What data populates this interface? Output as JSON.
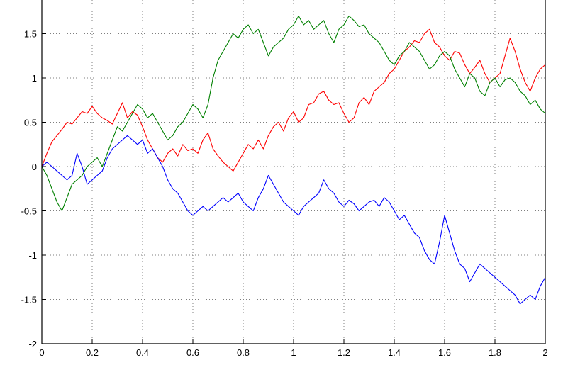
{
  "chart_data": {
    "type": "line",
    "title": "",
    "xlabel": "",
    "ylabel": "",
    "xlim": [
      0,
      2
    ],
    "ylim": [
      -2,
      2
    ],
    "x_ticks": [
      0,
      0.2,
      0.4,
      0.6,
      0.8,
      1,
      1.2,
      1.4,
      1.6,
      1.8,
      2
    ],
    "x_tick_labels": [
      "0",
      "0.2",
      "0.4",
      "0.6",
      "0.8",
      "1",
      "1.2",
      "1.4",
      "1.6",
      "1.8",
      "2"
    ],
    "y_ticks": [
      -2,
      -1.5,
      -1,
      -0.5,
      0,
      0.5,
      1,
      1.5
    ],
    "y_tick_labels": [
      "-2",
      "-1.5",
      "-1",
      "-0.5",
      "0",
      "0.5",
      "1",
      "1.5"
    ],
    "grid": true,
    "legend": "none",
    "series": [
      {
        "color": "#ff0000",
        "x": [
          0,
          0.02,
          0.04,
          0.06,
          0.08,
          0.1,
          0.12,
          0.14,
          0.16,
          0.18,
          0.2,
          0.22,
          0.24,
          0.26,
          0.28,
          0.3,
          0.32,
          0.34,
          0.36,
          0.38,
          0.4,
          0.42,
          0.44,
          0.46,
          0.48,
          0.5,
          0.52,
          0.54,
          0.56,
          0.58,
          0.6,
          0.62,
          0.64,
          0.66,
          0.68,
          0.7,
          0.72,
          0.74,
          0.76,
          0.78,
          0.8,
          0.82,
          0.84,
          0.86,
          0.88,
          0.9,
          0.92,
          0.94,
          0.96,
          0.98,
          1.0,
          1.02,
          1.04,
          1.06,
          1.08,
          1.1,
          1.12,
          1.14,
          1.16,
          1.18,
          1.2,
          1.22,
          1.24,
          1.26,
          1.28,
          1.3,
          1.32,
          1.34,
          1.36,
          1.38,
          1.4,
          1.42,
          1.44,
          1.46,
          1.48,
          1.5,
          1.52,
          1.54,
          1.56,
          1.58,
          1.6,
          1.62,
          1.64,
          1.66,
          1.68,
          1.7,
          1.72,
          1.74,
          1.76,
          1.78,
          1.8,
          1.82,
          1.84,
          1.86,
          1.88,
          1.9,
          1.92,
          1.94,
          1.96,
          1.98,
          2.0
        ],
        "y": [
          0,
          0.15,
          0.28,
          0.35,
          0.42,
          0.5,
          0.48,
          0.55,
          0.62,
          0.6,
          0.68,
          0.6,
          0.55,
          0.52,
          0.48,
          0.6,
          0.72,
          0.55,
          0.62,
          0.58,
          0.45,
          0.3,
          0.2,
          0.1,
          0.05,
          0.15,
          0.2,
          0.12,
          0.25,
          0.18,
          0.2,
          0.15,
          0.3,
          0.38,
          0.2,
          0.12,
          0.05,
          0.0,
          -0.05,
          0.05,
          0.15,
          0.25,
          0.2,
          0.3,
          0.2,
          0.35,
          0.45,
          0.5,
          0.4,
          0.55,
          0.62,
          0.5,
          0.55,
          0.7,
          0.72,
          0.82,
          0.85,
          0.75,
          0.7,
          0.72,
          0.6,
          0.5,
          0.55,
          0.72,
          0.78,
          0.7,
          0.85,
          0.9,
          0.95,
          1.05,
          1.1,
          1.2,
          1.3,
          1.35,
          1.42,
          1.4,
          1.5,
          1.55,
          1.4,
          1.35,
          1.25,
          1.2,
          1.3,
          1.28,
          1.15,
          1.05,
          1.12,
          1.2,
          1.05,
          0.95,
          1.0,
          1.05,
          1.25,
          1.45,
          1.3,
          1.1,
          0.95,
          0.85,
          1.0,
          1.1,
          1.15
        ]
      },
      {
        "color": "#008000",
        "x": [
          0,
          0.02,
          0.04,
          0.06,
          0.08,
          0.1,
          0.12,
          0.14,
          0.16,
          0.18,
          0.2,
          0.22,
          0.24,
          0.26,
          0.28,
          0.3,
          0.32,
          0.34,
          0.36,
          0.38,
          0.4,
          0.42,
          0.44,
          0.46,
          0.48,
          0.5,
          0.52,
          0.54,
          0.56,
          0.58,
          0.6,
          0.62,
          0.64,
          0.66,
          0.68,
          0.7,
          0.72,
          0.74,
          0.76,
          0.78,
          0.8,
          0.82,
          0.84,
          0.86,
          0.88,
          0.9,
          0.92,
          0.94,
          0.96,
          0.98,
          1.0,
          1.02,
          1.04,
          1.06,
          1.08,
          1.1,
          1.12,
          1.14,
          1.16,
          1.18,
          1.2,
          1.22,
          1.24,
          1.26,
          1.28,
          1.3,
          1.32,
          1.34,
          1.36,
          1.38,
          1.4,
          1.42,
          1.44,
          1.46,
          1.48,
          1.5,
          1.52,
          1.54,
          1.56,
          1.58,
          1.6,
          1.62,
          1.64,
          1.66,
          1.68,
          1.7,
          1.72,
          1.74,
          1.76,
          1.78,
          1.8,
          1.82,
          1.84,
          1.86,
          1.88,
          1.9,
          1.92,
          1.94,
          1.96,
          1.98,
          2.0
        ],
        "y": [
          0,
          -0.1,
          -0.25,
          -0.4,
          -0.5,
          -0.35,
          -0.2,
          -0.15,
          -0.1,
          0.0,
          0.05,
          0.1,
          0.0,
          0.15,
          0.3,
          0.45,
          0.4,
          0.5,
          0.6,
          0.7,
          0.65,
          0.55,
          0.6,
          0.5,
          0.4,
          0.3,
          0.35,
          0.45,
          0.5,
          0.6,
          0.7,
          0.65,
          0.55,
          0.7,
          1.0,
          1.2,
          1.3,
          1.4,
          1.5,
          1.45,
          1.55,
          1.6,
          1.5,
          1.55,
          1.4,
          1.25,
          1.35,
          1.4,
          1.45,
          1.55,
          1.6,
          1.7,
          1.6,
          1.65,
          1.55,
          1.6,
          1.65,
          1.5,
          1.4,
          1.55,
          1.6,
          1.7,
          1.65,
          1.58,
          1.6,
          1.5,
          1.45,
          1.4,
          1.3,
          1.2,
          1.15,
          1.25,
          1.3,
          1.4,
          1.35,
          1.3,
          1.2,
          1.1,
          1.15,
          1.25,
          1.3,
          1.25,
          1.1,
          1.0,
          0.9,
          1.05,
          1.0,
          0.85,
          0.8,
          0.95,
          1.0,
          0.9,
          0.98,
          1.0,
          0.95,
          0.85,
          0.8,
          0.7,
          0.75,
          0.65,
          0.6
        ]
      },
      {
        "color": "#0000ff",
        "x": [
          0,
          0.02,
          0.04,
          0.06,
          0.08,
          0.1,
          0.12,
          0.14,
          0.16,
          0.18,
          0.2,
          0.22,
          0.24,
          0.26,
          0.28,
          0.3,
          0.32,
          0.34,
          0.36,
          0.38,
          0.4,
          0.42,
          0.44,
          0.46,
          0.48,
          0.5,
          0.52,
          0.54,
          0.56,
          0.58,
          0.6,
          0.62,
          0.64,
          0.66,
          0.68,
          0.7,
          0.72,
          0.74,
          0.76,
          0.78,
          0.8,
          0.82,
          0.84,
          0.86,
          0.88,
          0.9,
          0.92,
          0.94,
          0.96,
          0.98,
          1.0,
          1.02,
          1.04,
          1.06,
          1.08,
          1.1,
          1.12,
          1.14,
          1.16,
          1.18,
          1.2,
          1.22,
          1.24,
          1.26,
          1.28,
          1.3,
          1.32,
          1.34,
          1.36,
          1.38,
          1.4,
          1.42,
          1.44,
          1.46,
          1.48,
          1.5,
          1.52,
          1.54,
          1.56,
          1.58,
          1.6,
          1.62,
          1.64,
          1.66,
          1.68,
          1.7,
          1.72,
          1.74,
          1.76,
          1.78,
          1.8,
          1.82,
          1.84,
          1.86,
          1.88,
          1.9,
          1.92,
          1.94,
          1.96,
          1.98,
          2.0
        ],
        "y": [
          0,
          0.05,
          0.0,
          -0.05,
          -0.1,
          -0.15,
          -0.1,
          0.15,
          0.0,
          -0.2,
          -0.15,
          -0.1,
          -0.05,
          0.1,
          0.2,
          0.25,
          0.3,
          0.35,
          0.3,
          0.25,
          0.3,
          0.15,
          0.2,
          0.1,
          0.0,
          -0.15,
          -0.25,
          -0.3,
          -0.4,
          -0.5,
          -0.55,
          -0.5,
          -0.45,
          -0.5,
          -0.45,
          -0.4,
          -0.35,
          -0.4,
          -0.35,
          -0.3,
          -0.4,
          -0.45,
          -0.5,
          -0.35,
          -0.25,
          -0.1,
          -0.2,
          -0.3,
          -0.4,
          -0.45,
          -0.5,
          -0.55,
          -0.45,
          -0.4,
          -0.35,
          -0.3,
          -0.15,
          -0.25,
          -0.3,
          -0.4,
          -0.45,
          -0.38,
          -0.42,
          -0.5,
          -0.45,
          -0.4,
          -0.38,
          -0.45,
          -0.35,
          -0.4,
          -0.5,
          -0.6,
          -0.55,
          -0.65,
          -0.75,
          -0.8,
          -0.95,
          -1.05,
          -1.1,
          -0.85,
          -0.55,
          -0.75,
          -0.95,
          -1.1,
          -1.15,
          -1.3,
          -1.2,
          -1.1,
          -1.15,
          -1.2,
          -1.25,
          -1.3,
          -1.35,
          -1.4,
          -1.45,
          -1.55,
          -1.5,
          -1.45,
          -1.5,
          -1.35,
          -1.25
        ]
      }
    ]
  }
}
